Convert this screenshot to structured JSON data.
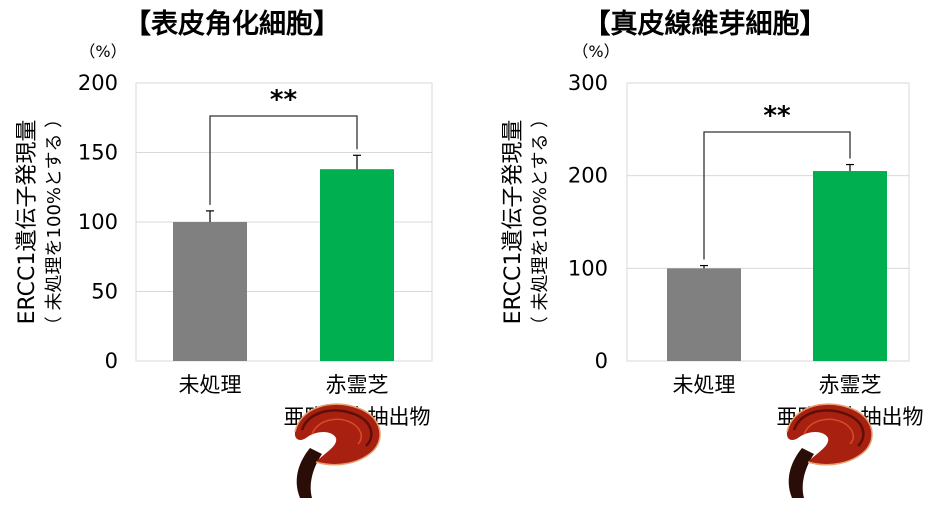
{
  "chart_data": [
    {
      "type": "bar",
      "title": "【表皮角化細胞】",
      "ylabel": "ERCC1遺伝子発現量",
      "ylabel_note": "（ 未処理を100%とする ）",
      "unit": "（%）",
      "ylim": [
        0,
        200
      ],
      "yticks": [
        "0",
        "50",
        "100",
        "150",
        "200"
      ],
      "grid": true,
      "categories": [
        {
          "line1": "未処理",
          "line2": ""
        },
        {
          "line1": "赤霊芝",
          "line2": "亜臨界水抽出物"
        }
      ],
      "values": [
        100,
        138
      ],
      "errors": [
        8,
        10
      ],
      "colors": [
        "#808080",
        "#00b050"
      ],
      "significance": "**"
    },
    {
      "type": "bar",
      "title": "【真皮線維芽細胞】",
      "ylabel": "ERCC1遺伝子発現量",
      "ylabel_note": "（ 未処理を100%とする ）",
      "unit": "（%）",
      "ylim": [
        0,
        300
      ],
      "yticks": [
        "0",
        "100",
        "200",
        "300"
      ],
      "grid": true,
      "categories": [
        {
          "line1": "未処理",
          "line2": ""
        },
        {
          "line1": "赤霊芝",
          "line2": "亜臨界水抽出物"
        }
      ],
      "values": [
        100,
        205
      ],
      "errors": [
        3,
        7
      ],
      "colors": [
        "#808080",
        "#00b050"
      ],
      "significance": "**"
    }
  ]
}
